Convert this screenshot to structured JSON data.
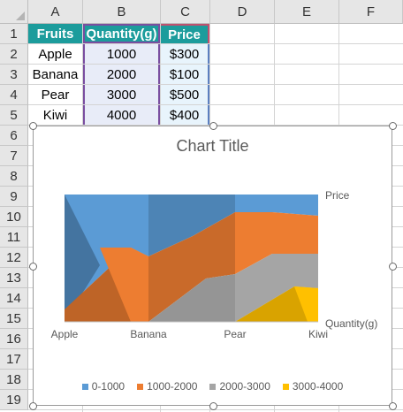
{
  "columns": [
    "A",
    "B",
    "C",
    "D",
    "E",
    "F"
  ],
  "rows": [
    "1",
    "2",
    "3",
    "4",
    "5",
    "6",
    "7",
    "8",
    "9",
    "10",
    "11",
    "12",
    "13",
    "14",
    "15",
    "16",
    "17",
    "18",
    "19"
  ],
  "table": {
    "headers": [
      "Fruits",
      "Quantity(g)",
      "Price"
    ],
    "rows": [
      [
        "Apple",
        "1000",
        "$300"
      ],
      [
        "Banana",
        "2000",
        "$100"
      ],
      [
        "Pear",
        "3000",
        "$500"
      ],
      [
        "Kiwi",
        "4000",
        "$400"
      ]
    ]
  },
  "colors": {
    "header_fill": "#1c9c9c",
    "selection_border": "#7a4ea0",
    "band_0_1000": "#5b9bd5",
    "band_1000_2000": "#ed7d31",
    "band_2000_3000": "#a5a5a5",
    "band_3000_4000": "#ffc000"
  },
  "chart_data": {
    "type": "surface",
    "title": "Chart Title",
    "categories": [
      "Apple",
      "Banana",
      "Pear",
      "Kiwi"
    ],
    "series": [
      {
        "name": "Quantity(g)",
        "values": [
          1000,
          2000,
          3000,
          4000
        ]
      },
      {
        "name": "Price",
        "values": [
          300,
          100,
          500,
          400
        ]
      }
    ],
    "bands": [
      "0-1000",
      "1000-2000",
      "2000-3000",
      "3000-4000"
    ],
    "band_colors": [
      "#5b9bd5",
      "#ed7d31",
      "#a5a5a5",
      "#ffc000"
    ],
    "legend_position": "bottom"
  }
}
